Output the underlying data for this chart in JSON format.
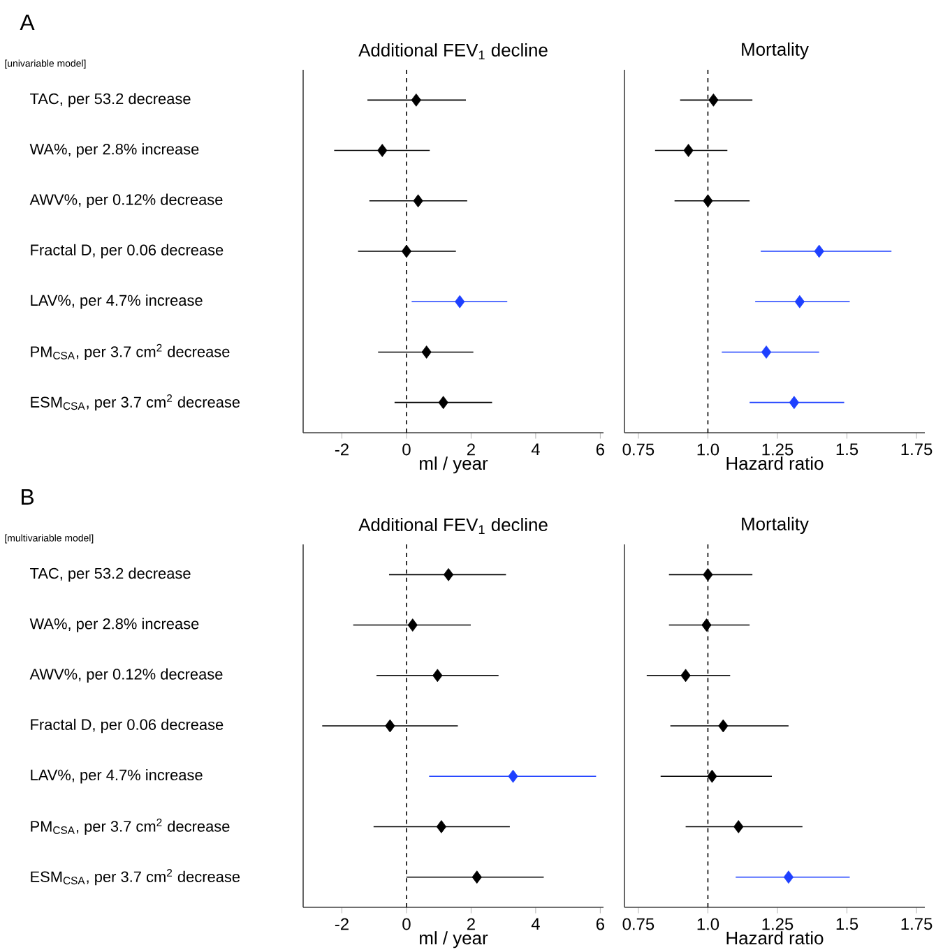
{
  "chart_data": [
    {
      "type": "scatter",
      "orientation": "horizontal",
      "title": "Additional FEV$_{1}$ decline",
      "xlabel": "ml / year",
      "annotations": [
        "A",
        "[univariable model]"
      ],
      "categories": [
        "TAC, per 53.2 decrease",
        "WA%, per 2.8% increase",
        "AWV%, per 0.12% decrease",
        "Fractal D, per 0.06 decrease",
        "LAV%, per 4.7% increase",
        "PM$_{CSA}$, per 3.7 cm$^{2}$ decrease",
        "ESM$_{CSA}$, per 3.7 cm$^{2}$ decrease"
      ],
      "values": [
        0.3,
        -0.75,
        0.36,
        0.0,
        1.65,
        0.62,
        1.14
      ],
      "errors": [
        [
          -1.21,
          1.84
        ],
        [
          -2.24,
          0.72
        ],
        [
          -1.15,
          1.88
        ],
        [
          -1.5,
          1.53
        ],
        [
          0.16,
          3.12
        ],
        [
          -0.88,
          2.07
        ],
        [
          -0.37,
          2.65
        ]
      ],
      "colors": [
        "#000000",
        "#000000",
        "#000000",
        "#000000",
        "#1e40ff",
        "#000000",
        "#000000"
      ],
      "marker": "diamond",
      "xlim": [
        -3.2,
        6.1
      ],
      "xticks": [
        -2,
        0,
        2,
        4,
        6
      ],
      "ref_lines": [
        {
          "axis": "x",
          "value": 0,
          "line_style": "dashed"
        }
      ]
    },
    {
      "type": "scatter",
      "orientation": "horizontal",
      "title": "Mortality",
      "xlabel": "Hazard ratio",
      "categories": [
        null,
        null,
        null,
        null,
        null,
        null,
        null
      ],
      "values": [
        1.02,
        0.93,
        1.0,
        1.4,
        1.33,
        1.21,
        1.31
      ],
      "errors": [
        [
          0.9,
          1.16
        ],
        [
          0.81,
          1.07
        ],
        [
          0.88,
          1.15
        ],
        [
          1.19,
          1.66
        ],
        [
          1.17,
          1.51
        ],
        [
          1.05,
          1.4
        ],
        [
          1.15,
          1.49
        ]
      ],
      "colors": [
        "#000000",
        "#000000",
        "#000000",
        "#1e40ff",
        "#1e40ff",
        "#1e40ff",
        "#1e40ff"
      ],
      "marker": "diamond",
      "xlim": [
        0.7,
        1.78
      ],
      "xticks": [
        0.75,
        {
          "value": 1,
          "label": "1.0"
        },
        1.25,
        1.5,
        1.75
      ],
      "ref_lines": [
        {
          "axis": "x",
          "value": 1,
          "line_style": "dashed"
        }
      ]
    },
    {
      "type": "scatter",
      "orientation": "horizontal",
      "title": "Additional FEV$_{1}$ decline",
      "xlabel": "ml / year",
      "annotations": [
        "B",
        "[multivariable model]"
      ],
      "categories": [
        "TAC, per 53.2 decrease",
        "WA%, per 2.8% increase",
        "AWV%, per 0.12% decrease",
        "Fractal D, per 0.06 decrease",
        "LAV%, per 4.7% increase",
        "PM$_{CSA}$, per 3.7 cm$^{2}$ decrease",
        "ESM$_{CSA}$, per 3.7 cm$^{2}$ decrease"
      ],
      "values": [
        1.3,
        0.19,
        0.96,
        -0.51,
        3.3,
        1.08,
        2.18
      ],
      "errors": [
        [
          -0.54,
          3.08
        ],
        [
          -1.65,
          1.99
        ],
        [
          -0.93,
          2.85
        ],
        [
          -2.61,
          1.59
        ],
        [
          0.7,
          5.87
        ],
        [
          -1.02,
          3.2
        ],
        [
          0.0,
          4.25
        ]
      ],
      "colors": [
        "#000000",
        "#000000",
        "#000000",
        "#000000",
        "#1e40ff",
        "#000000",
        "#000000"
      ],
      "marker": "diamond",
      "xlim": [
        -3.2,
        6.1
      ],
      "xticks": [
        -2,
        0,
        2,
        4,
        6
      ],
      "ref_lines": [
        {
          "axis": "x",
          "value": 0,
          "line_style": "dashed"
        }
      ]
    },
    {
      "type": "scatter",
      "orientation": "horizontal",
      "title": "Mortality",
      "xlabel": "Hazard ratio",
      "categories": [
        null,
        null,
        null,
        null,
        null,
        null,
        null
      ],
      "values": [
        1.0,
        0.995,
        0.92,
        1.055,
        1.015,
        1.11,
        1.29
      ],
      "errors": [
        [
          0.86,
          1.16
        ],
        [
          0.86,
          1.15
        ],
        [
          0.78,
          1.08
        ],
        [
          0.865,
          1.29
        ],
        [
          0.83,
          1.23
        ],
        [
          0.92,
          1.34
        ],
        [
          1.1,
          1.51
        ]
      ],
      "colors": [
        "#000000",
        "#000000",
        "#000000",
        "#000000",
        "#000000",
        "#000000",
        "#1e40ff"
      ],
      "marker": "diamond",
      "xlim": [
        0.7,
        1.78
      ],
      "xticks": [
        0.75,
        {
          "value": 1,
          "label": "1.0"
        },
        1.25,
        1.5,
        1.75
      ],
      "ref_lines": [
        {
          "axis": "x",
          "value": 1,
          "line_style": "dashed"
        }
      ]
    }
  ]
}
